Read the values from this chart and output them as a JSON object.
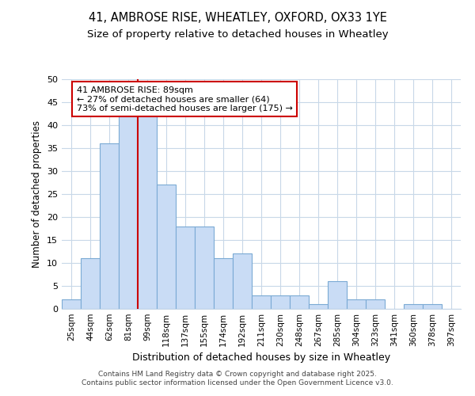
{
  "title1": "41, AMBROSE RISE, WHEATLEY, OXFORD, OX33 1YE",
  "title2": "Size of property relative to detached houses in Wheatley",
  "xlabel": "Distribution of detached houses by size in Wheatley",
  "ylabel": "Number of detached properties",
  "categories": [
    "25sqm",
    "44sqm",
    "62sqm",
    "81sqm",
    "99sqm",
    "118sqm",
    "137sqm",
    "155sqm",
    "174sqm",
    "192sqm",
    "211sqm",
    "230sqm",
    "248sqm",
    "267sqm",
    "285sqm",
    "304sqm",
    "323sqm",
    "341sqm",
    "360sqm",
    "378sqm",
    "397sqm"
  ],
  "values": [
    2,
    11,
    36,
    42,
    42,
    27,
    18,
    18,
    11,
    12,
    3,
    3,
    3,
    1,
    6,
    2,
    2,
    0,
    1,
    1,
    0
  ],
  "bar_color": "#c9dcf5",
  "bar_edge_color": "#7baad4",
  "red_line_x": 3.5,
  "annotation_text": "41 AMBROSE RISE: 89sqm\n← 27% of detached houses are smaller (64)\n73% of semi-detached houses are larger (175) →",
  "annotation_box_color": "#ffffff",
  "annotation_box_edge": "#cc0000",
  "annotation_text_color": "#000000",
  "red_line_color": "#cc0000",
  "ylim": [
    0,
    50
  ],
  "yticks": [
    0,
    5,
    10,
    15,
    20,
    25,
    30,
    35,
    40,
    45,
    50
  ],
  "footer1": "Contains HM Land Registry data © Crown copyright and database right 2025.",
  "footer2": "Contains public sector information licensed under the Open Government Licence v3.0.",
  "bg_color": "#ffffff",
  "grid_color": "#c8d8e8"
}
